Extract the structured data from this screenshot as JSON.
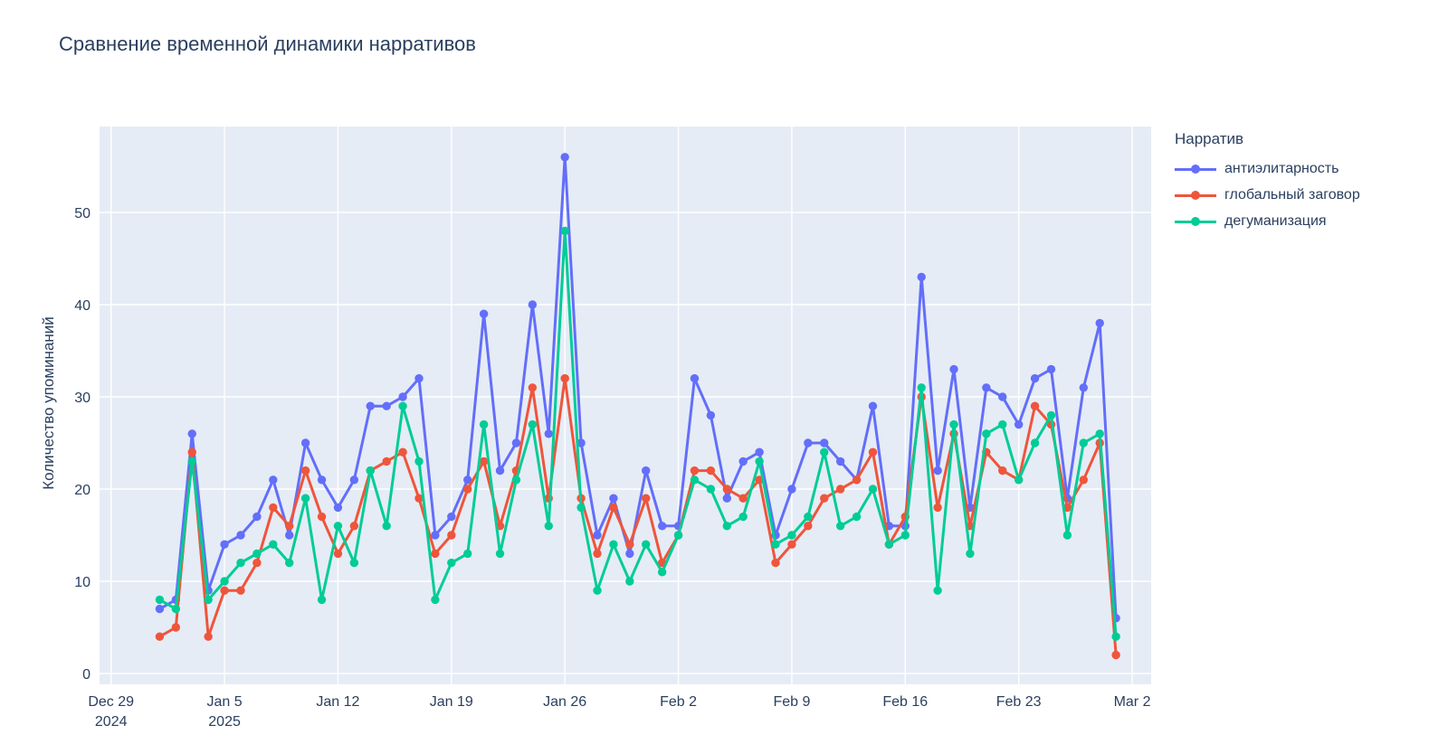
{
  "title": "Сравнение временной динамики нарративов",
  "legend": {
    "title": "Нарратив",
    "items": [
      {
        "label": "антиэлитарность",
        "color": "#636efa"
      },
      {
        "label": "глобальный заговор",
        "color": "#ef553b"
      },
      {
        "label": "дегуманизация",
        "color": "#00cc96"
      }
    ]
  },
  "chart_data": {
    "type": "line",
    "title": "Сравнение временной динамики нарративов",
    "xlabel": "",
    "ylabel": "Количество упоминаний",
    "plot_bg_color": "#e5ecf6",
    "grid_color": "#ffffff",
    "text_color": "#2a3f5f",
    "grid": true,
    "legend_position": "right",
    "y_ticks": [
      0,
      10,
      20,
      30,
      40,
      50
    ],
    "ylim": [
      -1.2,
      59.3
    ],
    "x_ticks": [
      {
        "label": "Dec 29",
        "sub": "2024",
        "day": 0
      },
      {
        "label": "Jan 5",
        "sub": "2025",
        "day": 7
      },
      {
        "label": "Jan 12",
        "day": 14
      },
      {
        "label": "Jan 19",
        "day": 21
      },
      {
        "label": "Jan 26",
        "day": 28
      },
      {
        "label": "Feb 2",
        "day": 35
      },
      {
        "label": "Feb 9",
        "day": 42
      },
      {
        "label": "Feb 16",
        "day": 49
      },
      {
        "label": "Feb 23",
        "day": 56
      },
      {
        "label": "Mar 2",
        "day": 63
      }
    ],
    "series_start_day": 3,
    "series": [
      {
        "name": "антиэлитарность",
        "color": "#636efa",
        "values": [
          7,
          8,
          26,
          9,
          14,
          15,
          17,
          21,
          15,
          25,
          21,
          18,
          21,
          29,
          29,
          30,
          32,
          15,
          17,
          21,
          39,
          22,
          25,
          40,
          26,
          56,
          25,
          15,
          19,
          13,
          22,
          16,
          16,
          32,
          28,
          19,
          23,
          24,
          15,
          20,
          25,
          25,
          23,
          21,
          29,
          16,
          16,
          43,
          22,
          33,
          18,
          31,
          30,
          27,
          32,
          33,
          19,
          31,
          38,
          6
        ]
      },
      {
        "name": "глобальный заговор",
        "color": "#ef553b",
        "values": [
          4,
          5,
          24,
          4,
          9,
          9,
          12,
          18,
          16,
          22,
          17,
          13,
          16,
          22,
          23,
          24,
          19,
          13,
          15,
          20,
          23,
          16,
          22,
          31,
          19,
          32,
          19,
          13,
          18,
          14,
          19,
          12,
          15,
          22,
          22,
          20,
          19,
          21,
          12,
          14,
          16,
          19,
          20,
          21,
          24,
          14,
          17,
          30,
          18,
          26,
          16,
          24,
          22,
          21,
          29,
          27,
          18,
          21,
          25,
          2
        ]
      },
      {
        "name": "дегуманизация",
        "color": "#00cc96",
        "values": [
          8,
          7,
          23,
          8,
          10,
          12,
          13,
          14,
          12,
          19,
          8,
          16,
          12,
          22,
          16,
          29,
          23,
          8,
          12,
          13,
          27,
          13,
          21,
          27,
          16,
          48,
          18,
          9,
          14,
          10,
          14,
          11,
          15,
          21,
          20,
          16,
          17,
          23,
          14,
          15,
          17,
          24,
          16,
          17,
          20,
          14,
          15,
          31,
          9,
          27,
          13,
          26,
          27,
          21,
          25,
          28,
          15,
          25,
          26,
          4
        ]
      }
    ]
  }
}
